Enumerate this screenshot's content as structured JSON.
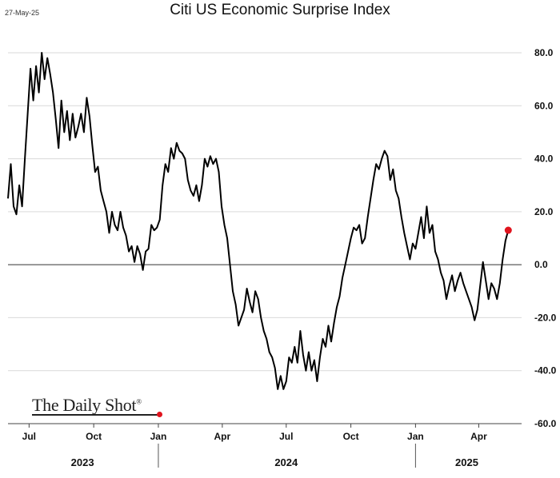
{
  "header": {
    "date": "27-May-25",
    "title": "Citi US Economic Surprise Index"
  },
  "brand": {
    "name": "The Daily Shot",
    "mark": "®"
  },
  "chart_data": {
    "type": "line",
    "title": "Citi US Economic Surprise Index",
    "xlabel": "",
    "ylabel": "",
    "ylim": [
      -60,
      80
    ],
    "yticks": [
      80,
      60,
      40,
      20,
      0,
      -20,
      -40,
      -60
    ],
    "ytick_labels": [
      "80.0",
      "60.0",
      "40.0",
      "20.0",
      "0.0",
      "-20.0",
      "-40.0",
      "-60.0"
    ],
    "xlim": [
      "2023-06-01",
      "2025-06-01"
    ],
    "x_ticks": [
      {
        "date": "2023-07-01",
        "label": "Jul"
      },
      {
        "date": "2023-10-01",
        "label": "Oct"
      },
      {
        "date": "2024-01-01",
        "label": "Jan"
      },
      {
        "date": "2024-04-01",
        "label": "Apr"
      },
      {
        "date": "2024-07-01",
        "label": "Jul"
      },
      {
        "date": "2024-10-01",
        "label": "Oct"
      },
      {
        "date": "2025-01-01",
        "label": "Jan"
      },
      {
        "date": "2025-04-01",
        "label": "Apr"
      }
    ],
    "years": [
      {
        "label": "2023",
        "center": "2023-09-15"
      },
      {
        "label": "2024",
        "center": "2024-07-01"
      },
      {
        "label": "2025",
        "center": "2025-03-15"
      }
    ],
    "year_separators": [
      "2024-01-01",
      "2025-01-01"
    ],
    "grid": true,
    "zero_line": true,
    "line_color": "#000000",
    "last_point_color": "#e0141e",
    "series": [
      {
        "points": [
          [
            "2023-06-01",
            25
          ],
          [
            "2023-06-05",
            38
          ],
          [
            "2023-06-09",
            22
          ],
          [
            "2023-06-13",
            19
          ],
          [
            "2023-06-17",
            30
          ],
          [
            "2023-06-21",
            22
          ],
          [
            "2023-06-25",
            40
          ],
          [
            "2023-06-29",
            57
          ],
          [
            "2023-07-03",
            74
          ],
          [
            "2023-07-07",
            62
          ],
          [
            "2023-07-11",
            75
          ],
          [
            "2023-07-15",
            65
          ],
          [
            "2023-07-19",
            80
          ],
          [
            "2023-07-23",
            70
          ],
          [
            "2023-07-27",
            78
          ],
          [
            "2023-07-31",
            72
          ],
          [
            "2023-08-04",
            65
          ],
          [
            "2023-08-08",
            55
          ],
          [
            "2023-08-12",
            44
          ],
          [
            "2023-08-16",
            62
          ],
          [
            "2023-08-20",
            50
          ],
          [
            "2023-08-24",
            58
          ],
          [
            "2023-08-28",
            47
          ],
          [
            "2023-09-01",
            57
          ],
          [
            "2023-09-05",
            48
          ],
          [
            "2023-09-09",
            52
          ],
          [
            "2023-09-13",
            57
          ],
          [
            "2023-09-17",
            50
          ],
          [
            "2023-09-21",
            63
          ],
          [
            "2023-09-25",
            56
          ],
          [
            "2023-09-29",
            45
          ],
          [
            "2023-10-03",
            35
          ],
          [
            "2023-10-07",
            37
          ],
          [
            "2023-10-11",
            28
          ],
          [
            "2023-10-15",
            24
          ],
          [
            "2023-10-19",
            20
          ],
          [
            "2023-10-23",
            12
          ],
          [
            "2023-10-27",
            20
          ],
          [
            "2023-10-31",
            15
          ],
          [
            "2023-11-04",
            13
          ],
          [
            "2023-11-08",
            20
          ],
          [
            "2023-11-12",
            14
          ],
          [
            "2023-11-16",
            11
          ],
          [
            "2023-11-20",
            5
          ],
          [
            "2023-11-24",
            7
          ],
          [
            "2023-11-28",
            1
          ],
          [
            "2023-12-02",
            7
          ],
          [
            "2023-12-06",
            4
          ],
          [
            "2023-12-10",
            -2
          ],
          [
            "2023-12-14",
            5
          ],
          [
            "2023-12-18",
            6
          ],
          [
            "2023-12-22",
            15
          ],
          [
            "2023-12-26",
            13
          ],
          [
            "2023-12-30",
            14
          ],
          [
            "2024-01-03",
            17
          ],
          [
            "2024-01-07",
            30
          ],
          [
            "2024-01-11",
            38
          ],
          [
            "2024-01-15",
            35
          ],
          [
            "2024-01-19",
            44
          ],
          [
            "2024-01-23",
            40
          ],
          [
            "2024-01-27",
            46
          ],
          [
            "2024-01-31",
            43
          ],
          [
            "2024-02-04",
            42
          ],
          [
            "2024-02-08",
            40
          ],
          [
            "2024-02-12",
            32
          ],
          [
            "2024-02-16",
            28
          ],
          [
            "2024-02-20",
            26
          ],
          [
            "2024-02-24",
            30
          ],
          [
            "2024-02-28",
            24
          ],
          [
            "2024-03-03",
            30
          ],
          [
            "2024-03-07",
            40
          ],
          [
            "2024-03-11",
            37
          ],
          [
            "2024-03-15",
            41
          ],
          [
            "2024-03-19",
            38
          ],
          [
            "2024-03-23",
            40
          ],
          [
            "2024-03-27",
            35
          ],
          [
            "2024-03-31",
            22
          ],
          [
            "2024-04-04",
            15
          ],
          [
            "2024-04-08",
            10
          ],
          [
            "2024-04-12",
            0
          ],
          [
            "2024-04-16",
            -10
          ],
          [
            "2024-04-20",
            -15
          ],
          [
            "2024-04-24",
            -23
          ],
          [
            "2024-04-28",
            -20
          ],
          [
            "2024-05-02",
            -17
          ],
          [
            "2024-05-06",
            -9
          ],
          [
            "2024-05-10",
            -14
          ],
          [
            "2024-05-14",
            -18
          ],
          [
            "2024-05-18",
            -10
          ],
          [
            "2024-05-22",
            -13
          ],
          [
            "2024-05-26",
            -20
          ],
          [
            "2024-05-30",
            -25
          ],
          [
            "2024-06-03",
            -28
          ],
          [
            "2024-06-07",
            -33
          ],
          [
            "2024-06-11",
            -35
          ],
          [
            "2024-06-15",
            -39
          ],
          [
            "2024-06-19",
            -47
          ],
          [
            "2024-06-23",
            -42
          ],
          [
            "2024-06-27",
            -47
          ],
          [
            "2024-07-01",
            -44
          ],
          [
            "2024-07-05",
            -35
          ],
          [
            "2024-07-09",
            -37
          ],
          [
            "2024-07-13",
            -31
          ],
          [
            "2024-07-17",
            -37
          ],
          [
            "2024-07-21",
            -25
          ],
          [
            "2024-07-25",
            -34
          ],
          [
            "2024-07-29",
            -40
          ],
          [
            "2024-08-02",
            -33
          ],
          [
            "2024-08-06",
            -40
          ],
          [
            "2024-08-10",
            -36
          ],
          [
            "2024-08-14",
            -44
          ],
          [
            "2024-08-18",
            -35
          ],
          [
            "2024-08-22",
            -28
          ],
          [
            "2024-08-26",
            -31
          ],
          [
            "2024-08-30",
            -23
          ],
          [
            "2024-09-03",
            -29
          ],
          [
            "2024-09-07",
            -22
          ],
          [
            "2024-09-11",
            -16
          ],
          [
            "2024-09-15",
            -12
          ],
          [
            "2024-09-19",
            -5
          ],
          [
            "2024-09-23",
            0
          ],
          [
            "2024-09-27",
            5
          ],
          [
            "2024-10-01",
            10
          ],
          [
            "2024-10-05",
            14
          ],
          [
            "2024-10-09",
            13
          ],
          [
            "2024-10-13",
            15
          ],
          [
            "2024-10-17",
            8
          ],
          [
            "2024-10-21",
            10
          ],
          [
            "2024-10-25",
            18
          ],
          [
            "2024-10-29",
            25
          ],
          [
            "2024-11-02",
            32
          ],
          [
            "2024-11-06",
            38
          ],
          [
            "2024-11-10",
            36
          ],
          [
            "2024-11-14",
            40
          ],
          [
            "2024-11-18",
            43
          ],
          [
            "2024-11-22",
            41
          ],
          [
            "2024-11-26",
            32
          ],
          [
            "2024-11-30",
            36
          ],
          [
            "2024-12-04",
            28
          ],
          [
            "2024-12-08",
            25
          ],
          [
            "2024-12-12",
            18
          ],
          [
            "2024-12-16",
            12
          ],
          [
            "2024-12-20",
            7
          ],
          [
            "2024-12-24",
            2
          ],
          [
            "2024-12-28",
            8
          ],
          [
            "2025-01-01",
            6
          ],
          [
            "2025-01-05",
            12
          ],
          [
            "2025-01-09",
            18
          ],
          [
            "2025-01-13",
            10
          ],
          [
            "2025-01-17",
            22
          ],
          [
            "2025-01-21",
            12
          ],
          [
            "2025-01-25",
            15
          ],
          [
            "2025-01-29",
            5
          ],
          [
            "2025-02-02",
            2
          ],
          [
            "2025-02-06",
            -3
          ],
          [
            "2025-02-10",
            -6
          ],
          [
            "2025-02-14",
            -13
          ],
          [
            "2025-02-18",
            -8
          ],
          [
            "2025-02-22",
            -4
          ],
          [
            "2025-02-26",
            -10
          ],
          [
            "2025-03-02",
            -6
          ],
          [
            "2025-03-06",
            -3
          ],
          [
            "2025-03-10",
            -7
          ],
          [
            "2025-03-14",
            -10
          ],
          [
            "2025-03-18",
            -13
          ],
          [
            "2025-03-22",
            -16
          ],
          [
            "2025-03-26",
            -21
          ],
          [
            "2025-03-30",
            -17
          ],
          [
            "2025-04-03",
            -8
          ],
          [
            "2025-04-07",
            1
          ],
          [
            "2025-04-11",
            -6
          ],
          [
            "2025-04-15",
            -13
          ],
          [
            "2025-04-19",
            -7
          ],
          [
            "2025-04-23",
            -9
          ],
          [
            "2025-04-27",
            -13
          ],
          [
            "2025-05-01",
            -7
          ],
          [
            "2025-05-05",
            2
          ],
          [
            "2025-05-09",
            9
          ],
          [
            "2025-05-13",
            13
          ]
        ]
      }
    ]
  }
}
